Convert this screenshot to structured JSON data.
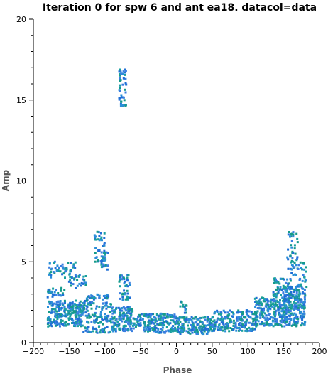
{
  "chart_data": {
    "type": "scatter",
    "title": "Iteration 0 for spw 6 and ant ea18.  datacol=data",
    "xlabel": "Phase",
    "ylabel": "Amp",
    "xlim": [
      -200,
      200
    ],
    "ylim": [
      0,
      20
    ],
    "xticks": [
      -200,
      -150,
      -100,
      -50,
      0,
      50,
      100,
      150,
      200
    ],
    "yticks": [
      0,
      5,
      10,
      15,
      20
    ],
    "grid": false,
    "colors": [
      "#1f6fd6",
      "#2a8fd8",
      "#1aa0a0",
      "#3b7fe0",
      "#159a8a"
    ],
    "clusters": [
      {
        "x0": -180,
        "x1": -130,
        "y0": 1.0,
        "y1": 2.6,
        "n": 260
      },
      {
        "x0": -180,
        "x1": -155,
        "y0": 2.8,
        "y1": 3.4,
        "n": 30
      },
      {
        "x0": -180,
        "x1": -140,
        "y0": 4.0,
        "y1": 5.0,
        "n": 50
      },
      {
        "x0": -150,
        "x1": -125,
        "y0": 3.3,
        "y1": 4.2,
        "n": 30
      },
      {
        "x0": -130,
        "x1": -90,
        "y0": 0.6,
        "y1": 3.0,
        "n": 170
      },
      {
        "x0": -115,
        "x1": -100,
        "y0": 5.0,
        "y1": 6.9,
        "n": 40
      },
      {
        "x0": -105,
        "x1": -95,
        "y0": 4.5,
        "y1": 5.6,
        "n": 25
      },
      {
        "x0": -90,
        "x1": -60,
        "y0": 0.7,
        "y1": 2.2,
        "n": 140
      },
      {
        "x0": -80,
        "x1": -65,
        "y0": 2.6,
        "y1": 4.2,
        "n": 45
      },
      {
        "x0": -60,
        "x1": 0,
        "y0": 0.6,
        "y1": 1.8,
        "n": 200
      },
      {
        "x0": 0,
        "x1": 50,
        "y0": 0.5,
        "y1": 1.6,
        "n": 180
      },
      {
        "x0": 5,
        "x1": 15,
        "y0": 1.8,
        "y1": 2.6,
        "n": 15
      },
      {
        "x0": 50,
        "x1": 110,
        "y0": 0.7,
        "y1": 2.0,
        "n": 200
      },
      {
        "x0": 110,
        "x1": 150,
        "y0": 1.0,
        "y1": 2.8,
        "n": 200
      },
      {
        "x0": 135,
        "x1": 160,
        "y0": 2.5,
        "y1": 4.0,
        "n": 60
      },
      {
        "x0": 150,
        "x1": 180,
        "y0": 1.0,
        "y1": 3.5,
        "n": 240
      },
      {
        "x0": 155,
        "x1": 170,
        "y0": 4.0,
        "y1": 6.9,
        "n": 50
      },
      {
        "x0": 170,
        "x1": 182,
        "y0": 3.2,
        "y1": 5.0,
        "n": 25
      },
      {
        "x0": -80,
        "x1": -70,
        "y0": 14.6,
        "y1": 16.9,
        "n": 50
      }
    ]
  }
}
